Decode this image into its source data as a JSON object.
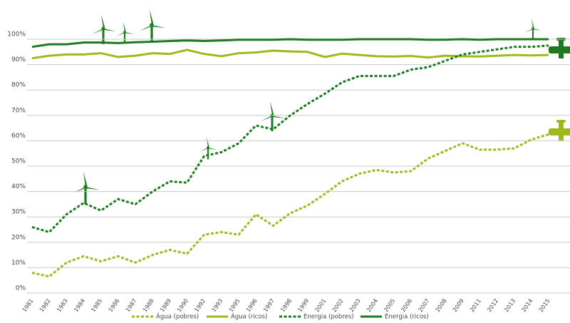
{
  "chart_data": {
    "type": "line",
    "categories": [
      "1981",
      "1982",
      "1983",
      "1984",
      "1985",
      "1986",
      "1987",
      "1988",
      "1989",
      "1990",
      "1992",
      "1993",
      "1995",
      "1996",
      "1997",
      "1998",
      "1999",
      "2001",
      "2002",
      "2003",
      "2004",
      "2005",
      "2006",
      "2007",
      "2008",
      "2009",
      "2011",
      "2012",
      "2013",
      "2014",
      "2015"
    ],
    "series": [
      {
        "name": "Água (pobres)",
        "color": "#9bbb1c",
        "style": "dotted",
        "values": [
          8,
          6.5,
          12,
          14.5,
          12.5,
          14.5,
          12,
          15,
          17,
          15.5,
          23,
          24,
          23,
          31,
          26.5,
          31.5,
          34.5,
          39,
          44,
          47,
          48.5,
          47.5,
          48,
          53,
          56,
          59,
          56.5,
          56.5,
          57,
          60.5,
          62.5
        ]
      },
      {
        "name": "Água (ricos)",
        "color": "#9bbb1c",
        "style": "solid",
        "values": [
          92.5,
          93.5,
          94,
          94,
          94.5,
          93,
          93.5,
          94.5,
          94.2,
          95.8,
          94.2,
          93.3,
          94.5,
          94.8,
          95.5,
          95.2,
          95,
          93,
          94.3,
          93.8,
          93.3,
          93.2,
          93.4,
          92.8,
          93.5,
          93.3,
          93.2,
          93.5,
          93.8,
          93.6,
          93.8
        ]
      },
      {
        "name": "Energia (pobres)",
        "color": "#1e7a1e",
        "style": "dotted",
        "values": [
          26,
          24,
          31,
          35.5,
          32.5,
          37,
          35,
          40,
          44,
          43.5,
          54,
          55.5,
          59,
          66,
          64.5,
          70,
          74.5,
          78.5,
          83,
          85.5,
          85.5,
          85.5,
          88,
          89,
          91.5,
          94,
          95,
          96,
          97,
          97,
          97.5
        ]
      },
      {
        "name": "Energia (ricos)",
        "color": "#1e7a1e",
        "style": "solid",
        "values": [
          97,
          98,
          98,
          98.7,
          98.7,
          98.5,
          98.8,
          99,
          99.3,
          99.5,
          99.3,
          99.5,
          99.8,
          99.8,
          99.8,
          100,
          99.8,
          99.8,
          99.8,
          100,
          100,
          100,
          100,
          99.8,
          99.8,
          100,
          99.8,
          100,
          100,
          100,
          100
        ]
      }
    ],
    "ylim": [
      0,
      100
    ],
    "yticks": [
      {
        "value": 0,
        "label": "0%"
      },
      {
        "value": 10,
        "label": "10%"
      },
      {
        "value": 20,
        "label": "20%"
      },
      {
        "value": 30,
        "label": "30%"
      },
      {
        "value": 40,
        "label": "40%"
      },
      {
        "value": 50,
        "label": "50%"
      },
      {
        "value": 60,
        "label": "60%"
      },
      {
        "value": 70,
        "label": "70%"
      },
      {
        "value": 80,
        "label": "80%"
      },
      {
        "value": 90,
        "label": "90%"
      },
      {
        "value": 100,
        "label": "100%"
      }
    ],
    "grid": true,
    "legend": "bottom"
  }
}
